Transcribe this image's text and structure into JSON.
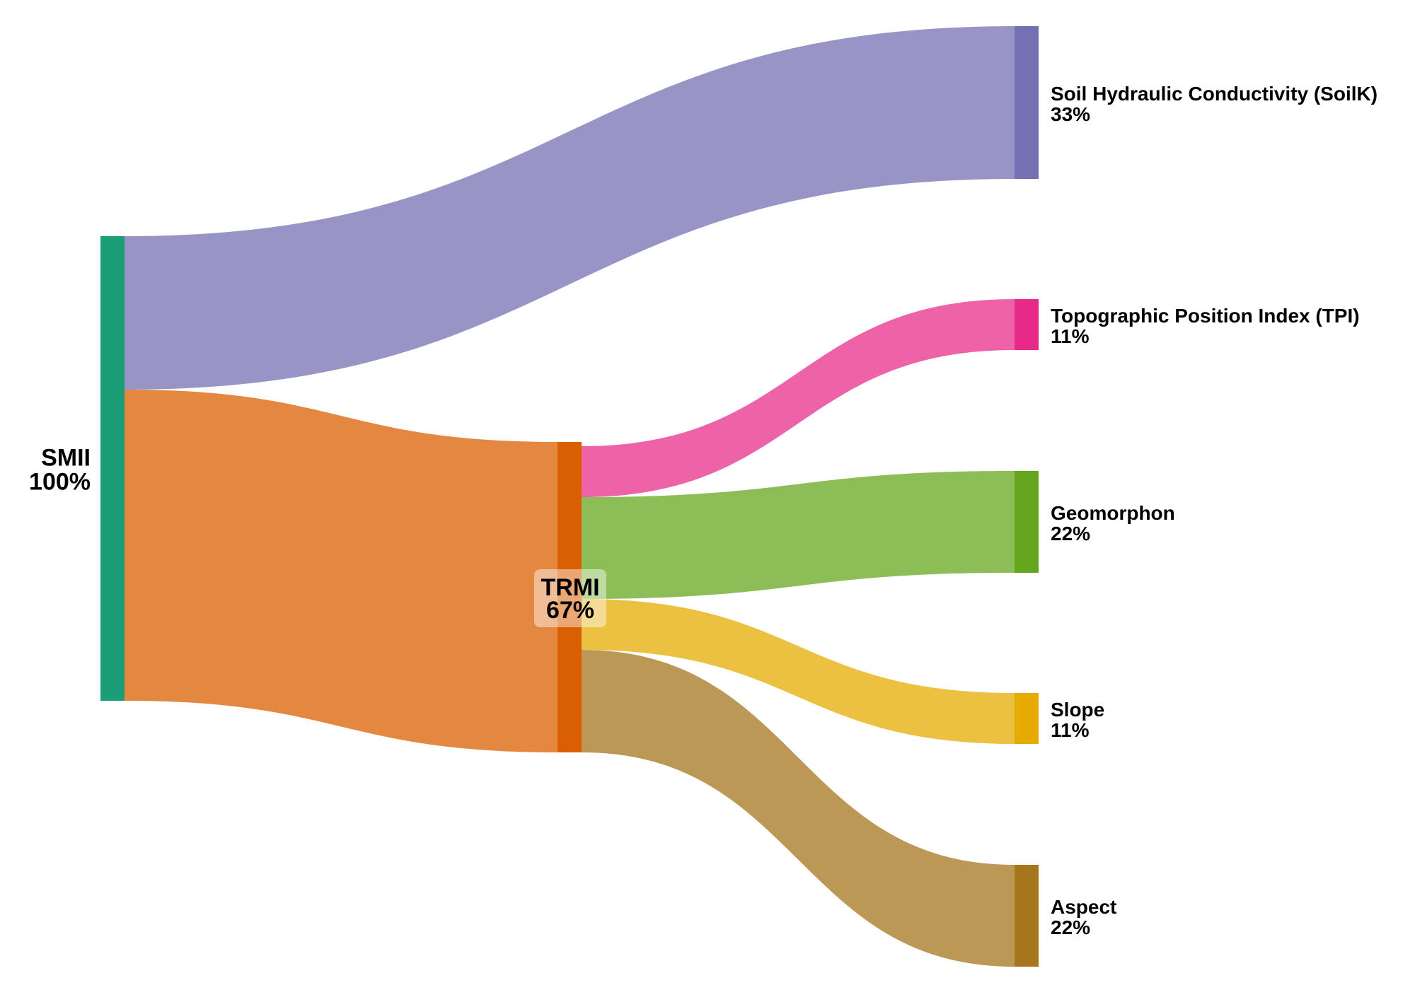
{
  "diagram": {
    "type": "sankey",
    "nodes": [
      {
        "id": "smii",
        "name": "SMII",
        "percent": "100%",
        "color": "#1b9e77"
      },
      {
        "id": "trmi",
        "name": "TRMI",
        "percent": "67%",
        "color": "#d95f02"
      },
      {
        "id": "soilk",
        "name": "Soil Hydraulic Conductivity (SoilK)",
        "percent": "33%",
        "color": "#7570b3"
      },
      {
        "id": "tpi",
        "name": "Topographic Position Index (TPI)",
        "percent": "11%",
        "color": "#e7298a"
      },
      {
        "id": "geomorphon",
        "name": "Geomorphon",
        "percent": "22%",
        "color": "#66a61e"
      },
      {
        "id": "slope",
        "name": "Slope",
        "percent": "11%",
        "color": "#e6ab02"
      },
      {
        "id": "aspect",
        "name": "Aspect",
        "percent": "22%",
        "color": "#a6761d"
      }
    ],
    "links": [
      {
        "source": "smii",
        "target": "soilk",
        "value": 33,
        "color": "#9894c6"
      },
      {
        "source": "smii",
        "target": "trmi",
        "value": 67,
        "color": "#e38741"
      },
      {
        "source": "trmi",
        "target": "tpi",
        "value": 11,
        "color": "#ee62a7"
      },
      {
        "source": "trmi",
        "target": "geomorphon",
        "value": 22,
        "color": "#8cbd56"
      },
      {
        "source": "trmi",
        "target": "slope",
        "value": 11,
        "color": "#ecc041"
      },
      {
        "source": "trmi",
        "target": "aspect",
        "value": 22,
        "color": "#bc9856"
      }
    ]
  }
}
